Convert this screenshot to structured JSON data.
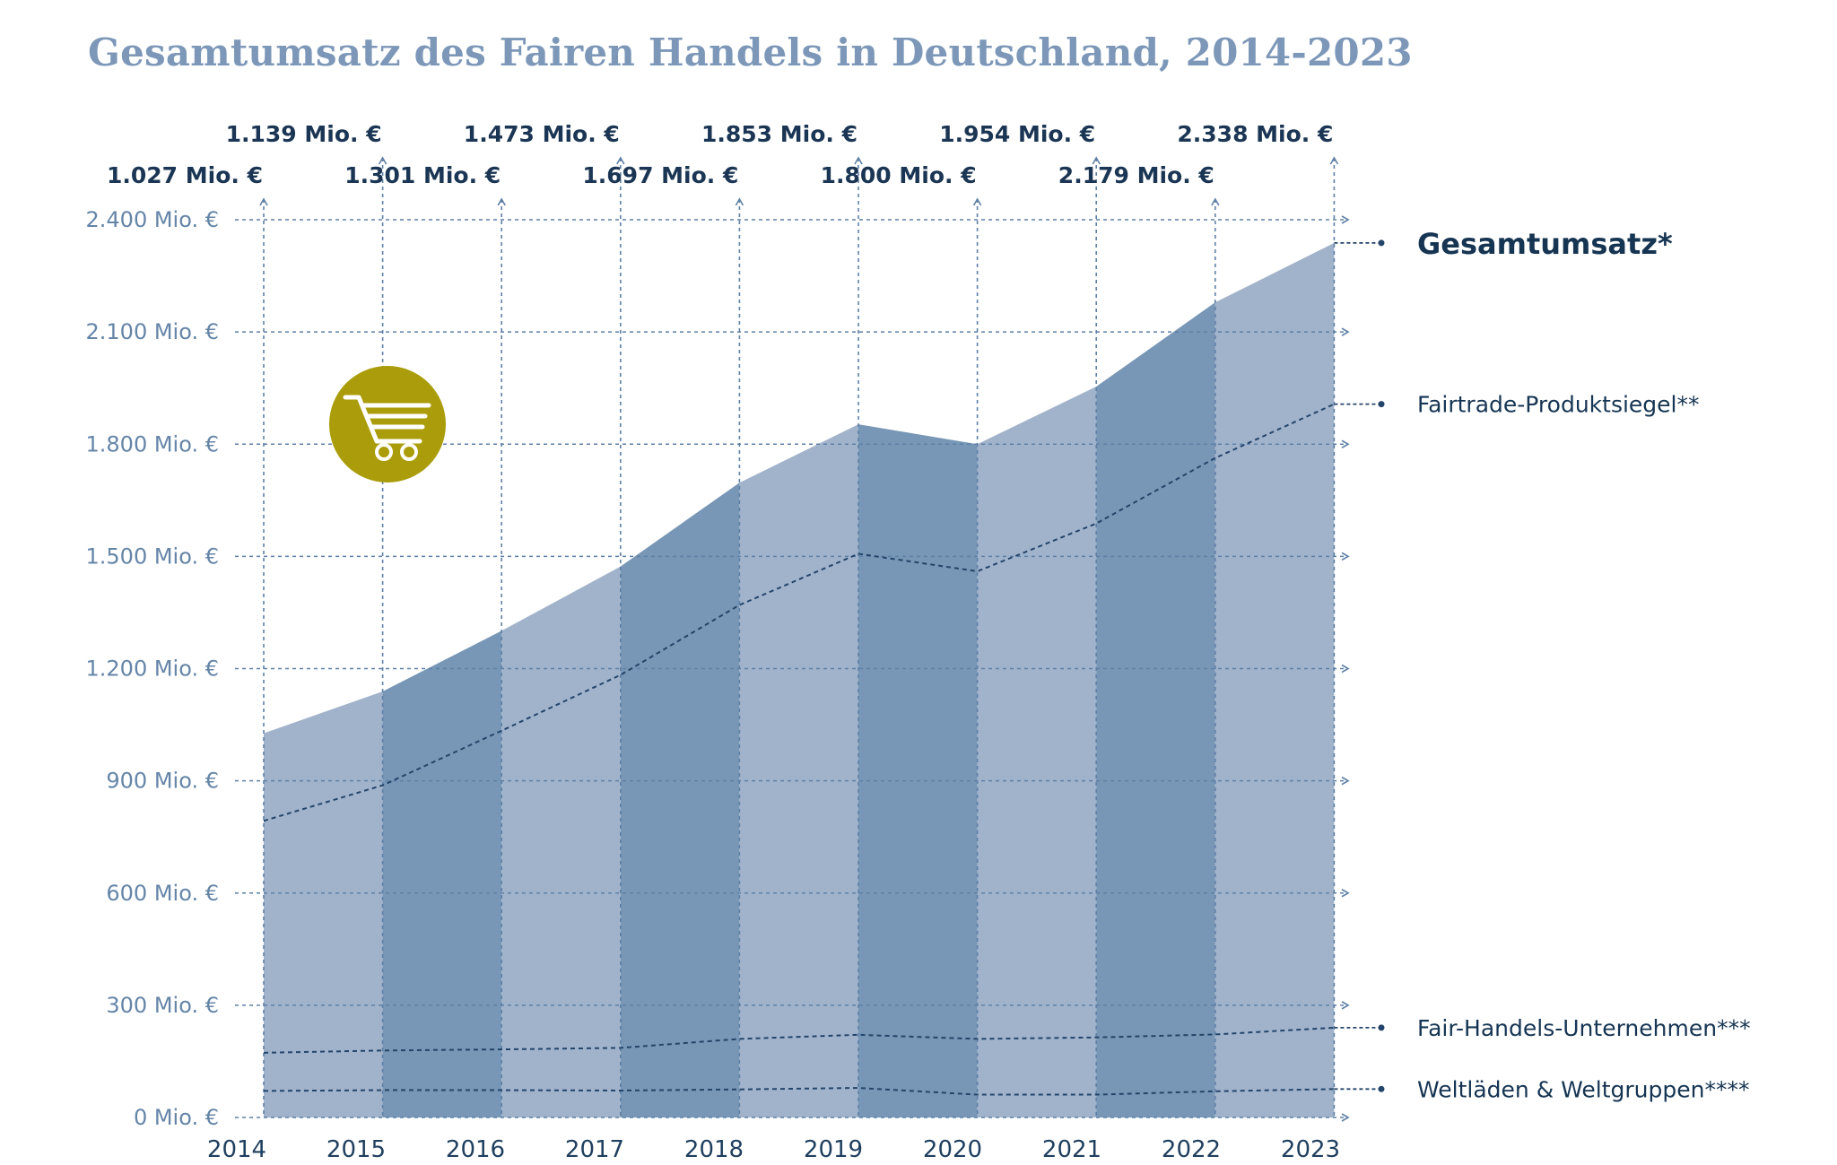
{
  "title": "Gesamtumsatz des Fairen Handels in Deutschland, 2014-2023",
  "chart_data": {
    "type": "area",
    "x": [
      "2014",
      "2015",
      "2016",
      "2017",
      "2018",
      "2019",
      "2020",
      "2021",
      "2022",
      "2023"
    ],
    "value_labels": [
      "1.027 Mio. €",
      "1.139 Mio. €",
      "1.301 Mio. €",
      "1.473 Mio. €",
      "1.697 Mio. €",
      "1.853 Mio. €",
      "1.800 Mio. €",
      "1.954 Mio. €",
      "2.179 Mio. €",
      "2.338 Mio. €"
    ],
    "y_ticks": [
      0,
      300,
      600,
      900,
      1200,
      1500,
      1800,
      2100,
      2400
    ],
    "y_tick_labels": [
      "0 Mio. €",
      "300 Mio. €",
      "600 Mio. €",
      "900 Mio. €",
      "1.200 Mio. €",
      "1.500 Mio. €",
      "1.800 Mio. €",
      "2.100 Mio. €",
      "2.400 Mio. €"
    ],
    "ylim": [
      0,
      2400
    ],
    "grid": true,
    "legend_placement": "right",
    "series": [
      {
        "name": "Gesamtumsatz*",
        "style": "area",
        "values": [
          1027,
          1139,
          1301,
          1473,
          1697,
          1853,
          1800,
          1954,
          2179,
          2338
        ]
      },
      {
        "name": "Fairtrade-Produktsiegel**",
        "style": "dashed-line",
        "values": [
          793,
          888,
          1034,
          1183,
          1370,
          1507,
          1460,
          1588,
          1763,
          1907
        ]
      },
      {
        "name": "Fair-Handels-Unternehmen***",
        "style": "dashed-line",
        "values": [
          173,
          179,
          182,
          186,
          210,
          221,
          210,
          214,
          222,
          240
        ]
      },
      {
        "name": "Weltläden & Weltgruppen****",
        "style": "dashed-line",
        "values": [
          71,
          73,
          73,
          72,
          75,
          79,
          61,
          61,
          70,
          76
        ]
      }
    ],
    "colors": {
      "area_light": "#a1b3cb",
      "area_dark": "#7897b6",
      "line": "#24456a",
      "icon": "#aa9c0a"
    }
  },
  "icon": "shopping-cart-icon"
}
